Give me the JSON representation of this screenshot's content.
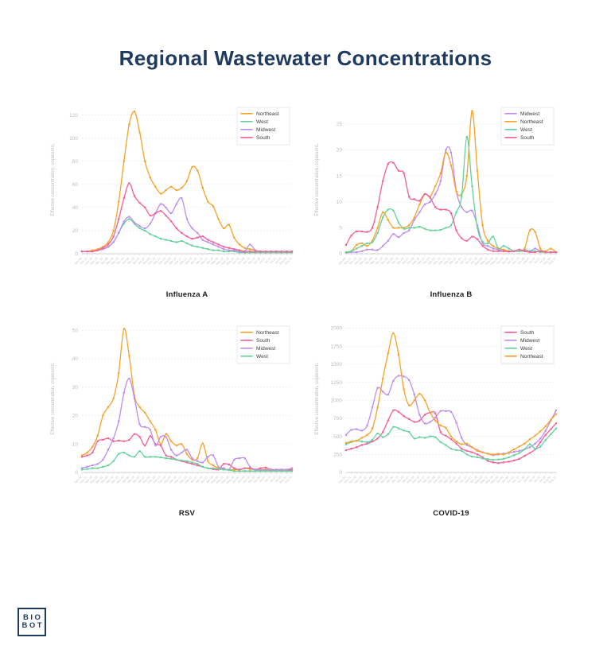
{
  "page": {
    "title": "Regional Wastewater Concentrations",
    "title_color": "#1e3a5f",
    "background": "#ffffff"
  },
  "logo": {
    "line1": "BIO",
    "line2": "BOT",
    "color": "#1e3a5f"
  },
  "axis": {
    "ylabel": "Effective concentration, copies/mL"
  },
  "region_colors": {
    "Northeast": "#F7A227",
    "West": "#63D29A",
    "Midwest": "#BD8DF1",
    "South": "#F45E97"
  },
  "x_labels": [
    "Nov 04",
    "Nov 11",
    "Nov 18",
    "Nov 25",
    "Dec 02",
    "Dec 09",
    "Dec 16",
    "Dec 23",
    "Dec 30",
    "Jan 06",
    "Jan 13",
    "Jan 20",
    "Jan 27",
    "Feb 03",
    "Feb 10",
    "Feb 17",
    "Feb 24",
    "Mar 03",
    "Mar 10",
    "Mar 17",
    "Mar 24",
    "Mar 31",
    "Apr 07",
    "Apr 14",
    "Apr 21",
    "Apr 28",
    "May 05",
    "May 12",
    "May 19",
    "May 26",
    "Jun 02",
    "Jun 09",
    "Jun 16",
    "Jun 23",
    "Jun 30",
    "Jul 07",
    "Jul 14",
    "Jul 21",
    "Jul 28",
    "Aug 04",
    "Aug 11"
  ],
  "chart_data": [
    {
      "type": "line",
      "title": "Influenza A",
      "ylabel": "Effective concentration, copies/mL",
      "ylim": [
        0,
        128
      ],
      "yticks": [
        0,
        20,
        40,
        60,
        80,
        100,
        120
      ],
      "grid": "dotted-horizontal",
      "legend_position": "top-right",
      "series": [
        {
          "name": "Northeast",
          "color": "#F7A227",
          "values": [
            2,
            2,
            3,
            4,
            6,
            10,
            20,
            45,
            80,
            112,
            123,
            105,
            80,
            66,
            58,
            52,
            55,
            58,
            55,
            57,
            63,
            75,
            72,
            57,
            45,
            41,
            30,
            22,
            25,
            14,
            8,
            5,
            4,
            3,
            2,
            2,
            2,
            2,
            2,
            2,
            2
          ]
        },
        {
          "name": "West",
          "color": "#63D29A",
          "values": [
            2,
            2,
            2,
            3,
            4,
            6,
            10,
            18,
            26,
            30,
            26,
            22,
            20,
            17,
            15,
            13,
            12,
            11,
            10,
            11,
            9,
            7,
            6,
            5,
            4,
            3,
            3,
            2,
            2,
            2,
            1,
            1,
            1,
            1,
            1,
            1,
            1,
            1,
            1,
            1,
            1
          ]
        },
        {
          "name": "Midwest",
          "color": "#BD8DF1",
          "values": [
            2,
            2,
            2,
            3,
            4,
            6,
            10,
            18,
            28,
            32,
            27,
            24,
            22,
            26,
            35,
            43,
            40,
            35,
            43,
            48,
            30,
            22,
            18,
            12,
            10,
            8,
            6,
            4,
            3,
            3,
            2,
            2,
            8,
            3,
            2,
            2,
            2,
            2,
            2,
            2,
            2
          ]
        },
        {
          "name": "South",
          "color": "#F45E97",
          "values": [
            2,
            2,
            2,
            3,
            5,
            8,
            15,
            30,
            48,
            61,
            50,
            44,
            40,
            33,
            35,
            37,
            33,
            28,
            22,
            18,
            15,
            13,
            14,
            15,
            12,
            10,
            8,
            6,
            5,
            4,
            3,
            2,
            2,
            2,
            2,
            2,
            2,
            2,
            2,
            2,
            2
          ]
        }
      ]
    },
    {
      "type": "line",
      "title": "Influenza B",
      "ylabel": "Effective concentration, copies/mL",
      "ylim": [
        0,
        28.5
      ],
      "yticks": [
        0,
        5,
        10,
        15,
        20,
        25
      ],
      "grid": "dotted-horizontal",
      "legend_position": "top-right",
      "series": [
        {
          "name": "Midwest",
          "color": "#BD8DF1",
          "values": [
            0.2,
            0.3,
            0.3,
            0.5,
            0.8,
            0.8,
            0.7,
            1.5,
            2.5,
            3.8,
            3.2,
            4,
            4.5,
            6.5,
            8,
            9.5,
            10,
            11.5,
            14,
            20,
            19.5,
            12,
            9,
            8,
            8.3,
            5.5,
            2,
            1.5,
            1,
            0.8,
            0.5,
            0.5,
            0.5,
            0.5,
            0.8,
            0.5,
            1,
            0.5,
            0.3,
            0.3,
            0.3
          ]
        },
        {
          "name": "Northeast",
          "color": "#F7A227",
          "values": [
            0.3,
            0.5,
            1.7,
            2,
            1.5,
            2.5,
            5,
            8,
            6.5,
            5,
            5,
            5,
            5.5,
            7,
            9.5,
            11.5,
            11,
            13,
            15.5,
            19.5,
            17,
            12,
            11.5,
            15,
            27.5,
            16,
            5.5,
            2.5,
            1.5,
            1,
            0.8,
            0.5,
            0.5,
            0.5,
            1,
            4.5,
            4.2,
            1,
            0.5,
            1,
            0.3
          ]
        },
        {
          "name": "West",
          "color": "#63D29A",
          "values": [
            0.3,
            0.5,
            1,
            1.5,
            2,
            2.2,
            4,
            7,
            8.5,
            8.3,
            6,
            4.8,
            5,
            5,
            5.2,
            4.8,
            4.5,
            4.5,
            4.6,
            5,
            5.5,
            8,
            11,
            22.5,
            13,
            5,
            2.3,
            2,
            3.3,
            1,
            1.5,
            1,
            0.5,
            0.5,
            0.5,
            0.5,
            0.5,
            0.3,
            0.3,
            0.3,
            0.3
          ]
        },
        {
          "name": "South",
          "color": "#F45E97",
          "values": [
            1.7,
            3.5,
            4.3,
            4.3,
            4.2,
            5,
            9,
            14,
            17.3,
            17.5,
            16,
            15.5,
            11,
            10.5,
            10.2,
            11.5,
            10.8,
            9,
            8.5,
            8.5,
            7.8,
            4.5,
            3,
            2.5,
            3.3,
            2.8,
            1.5,
            0.8,
            0.5,
            0.5,
            0.5,
            0.4,
            0.5,
            0.8,
            0.5,
            0.3,
            0.3,
            0.5,
            0.3,
            0.3,
            0.3
          ]
        }
      ]
    },
    {
      "type": "line",
      "title": "RSV",
      "ylabel": "Effective concentration, copies/mL",
      "ylim": [
        0,
        52
      ],
      "yticks": [
        0,
        10,
        20,
        30,
        40,
        50
      ],
      "grid": "dotted-horizontal",
      "legend_position": "top-right",
      "series": [
        {
          "name": "Northeast",
          "color": "#F7A227",
          "values": [
            6,
            7,
            9,
            13,
            20,
            23,
            26,
            35,
            50.5,
            41,
            27,
            23,
            21,
            18,
            15,
            10,
            13.5,
            11,
            9.5,
            10,
            6.5,
            4.5,
            5,
            10.2,
            4,
            2.5,
            1.5,
            1.2,
            1,
            1,
            1,
            1.5,
            1.2,
            1,
            1,
            1,
            0.8,
            0.8,
            0.8,
            0.8,
            1
          ]
        },
        {
          "name": "South",
          "color": "#F45E97",
          "values": [
            5.5,
            6,
            7,
            11,
            11.5,
            12,
            11,
            11.2,
            11,
            11.5,
            13.5,
            12.5,
            9.5,
            12.8,
            10,
            9.5,
            6,
            5.5,
            4.5,
            4,
            3.5,
            3,
            2.5,
            2,
            1.5,
            1.2,
            1,
            3,
            2.8,
            1.5,
            1,
            1.5,
            1.5,
            1,
            1.5,
            1.7,
            1,
            1,
            1,
            1,
            0.8
          ]
        },
        {
          "name": "Midwest",
          "color": "#BD8DF1",
          "values": [
            1.5,
            2,
            2.5,
            3,
            4.5,
            8,
            12,
            18,
            28,
            33,
            26,
            17,
            16,
            15,
            9.5,
            12.5,
            12.5,
            8,
            6,
            7,
            8,
            5,
            4,
            3.5,
            5.5,
            6,
            2,
            1.5,
            1,
            4.5,
            5,
            5,
            2,
            1,
            0.8,
            0.8,
            0.8,
            0.8,
            1,
            1,
            1.5
          ]
        },
        {
          "name": "West",
          "color": "#63D29A",
          "values": [
            1,
            1.2,
            1.5,
            1.5,
            2,
            2.5,
            4,
            6.5,
            7,
            6,
            5.5,
            7.5,
            5.5,
            5.5,
            5.5,
            5.3,
            5,
            4.8,
            4.5,
            4.2,
            4,
            3.5,
            3,
            2,
            1.5,
            1.5,
            1.2,
            1,
            0.8,
            0.5,
            0.5,
            0.5,
            0.5,
            0.5,
            0.5,
            0.5,
            0.5,
            0.5,
            0.5,
            0.5,
            0.5
          ]
        }
      ]
    },
    {
      "type": "line",
      "title": "COVID-19",
      "ylabel": "Effective concentration, copies/mL",
      "ylim": [
        0,
        2050
      ],
      "yticks": [
        0,
        250,
        500,
        750,
        1000,
        1250,
        1500,
        1750,
        2000
      ],
      "grid": "dotted-horizontal",
      "legend_position": "top-right",
      "series": [
        {
          "name": "South",
          "color": "#F45E97",
          "values": [
            310,
            330,
            350,
            380,
            400,
            430,
            470,
            560,
            720,
            860,
            840,
            780,
            740,
            700,
            720,
            800,
            830,
            820,
            560,
            510,
            460,
            400,
            330,
            300,
            280,
            250,
            210,
            160,
            140,
            130,
            140,
            150,
            165,
            190,
            230,
            270,
            320,
            420,
            520,
            600,
            680
          ]
        },
        {
          "name": "Midwest",
          "color": "#BD8DF1",
          "values": [
            520,
            590,
            600,
            580,
            650,
            900,
            1170,
            1120,
            1080,
            1270,
            1340,
            1330,
            1280,
            1080,
            800,
            680,
            700,
            760,
            850,
            850,
            840,
            690,
            480,
            380,
            350,
            310,
            280,
            260,
            240,
            250,
            260,
            270,
            285,
            300,
            320,
            350,
            400,
            470,
            580,
            720,
            860
          ]
        },
        {
          "name": "West",
          "color": "#63D29A",
          "values": [
            390,
            420,
            440,
            430,
            420,
            450,
            540,
            490,
            530,
            630,
            610,
            580,
            560,
            470,
            490,
            480,
            500,
            490,
            420,
            380,
            330,
            310,
            300,
            250,
            220,
            210,
            195,
            185,
            175,
            180,
            190,
            210,
            240,
            270,
            320,
            390,
            330,
            360,
            450,
            530,
            610
          ]
        },
        {
          "name": "Northeast",
          "color": "#F7A227",
          "values": [
            410,
            430,
            440,
            480,
            520,
            610,
            900,
            1300,
            1650,
            1930,
            1630,
            1150,
            930,
            1000,
            1090,
            1000,
            830,
            720,
            650,
            620,
            500,
            430,
            390,
            400,
            350,
            300,
            280,
            260,
            250,
            260,
            250,
            280,
            320,
            360,
            400,
            460,
            510,
            570,
            640,
            730,
            810
          ]
        }
      ]
    }
  ]
}
